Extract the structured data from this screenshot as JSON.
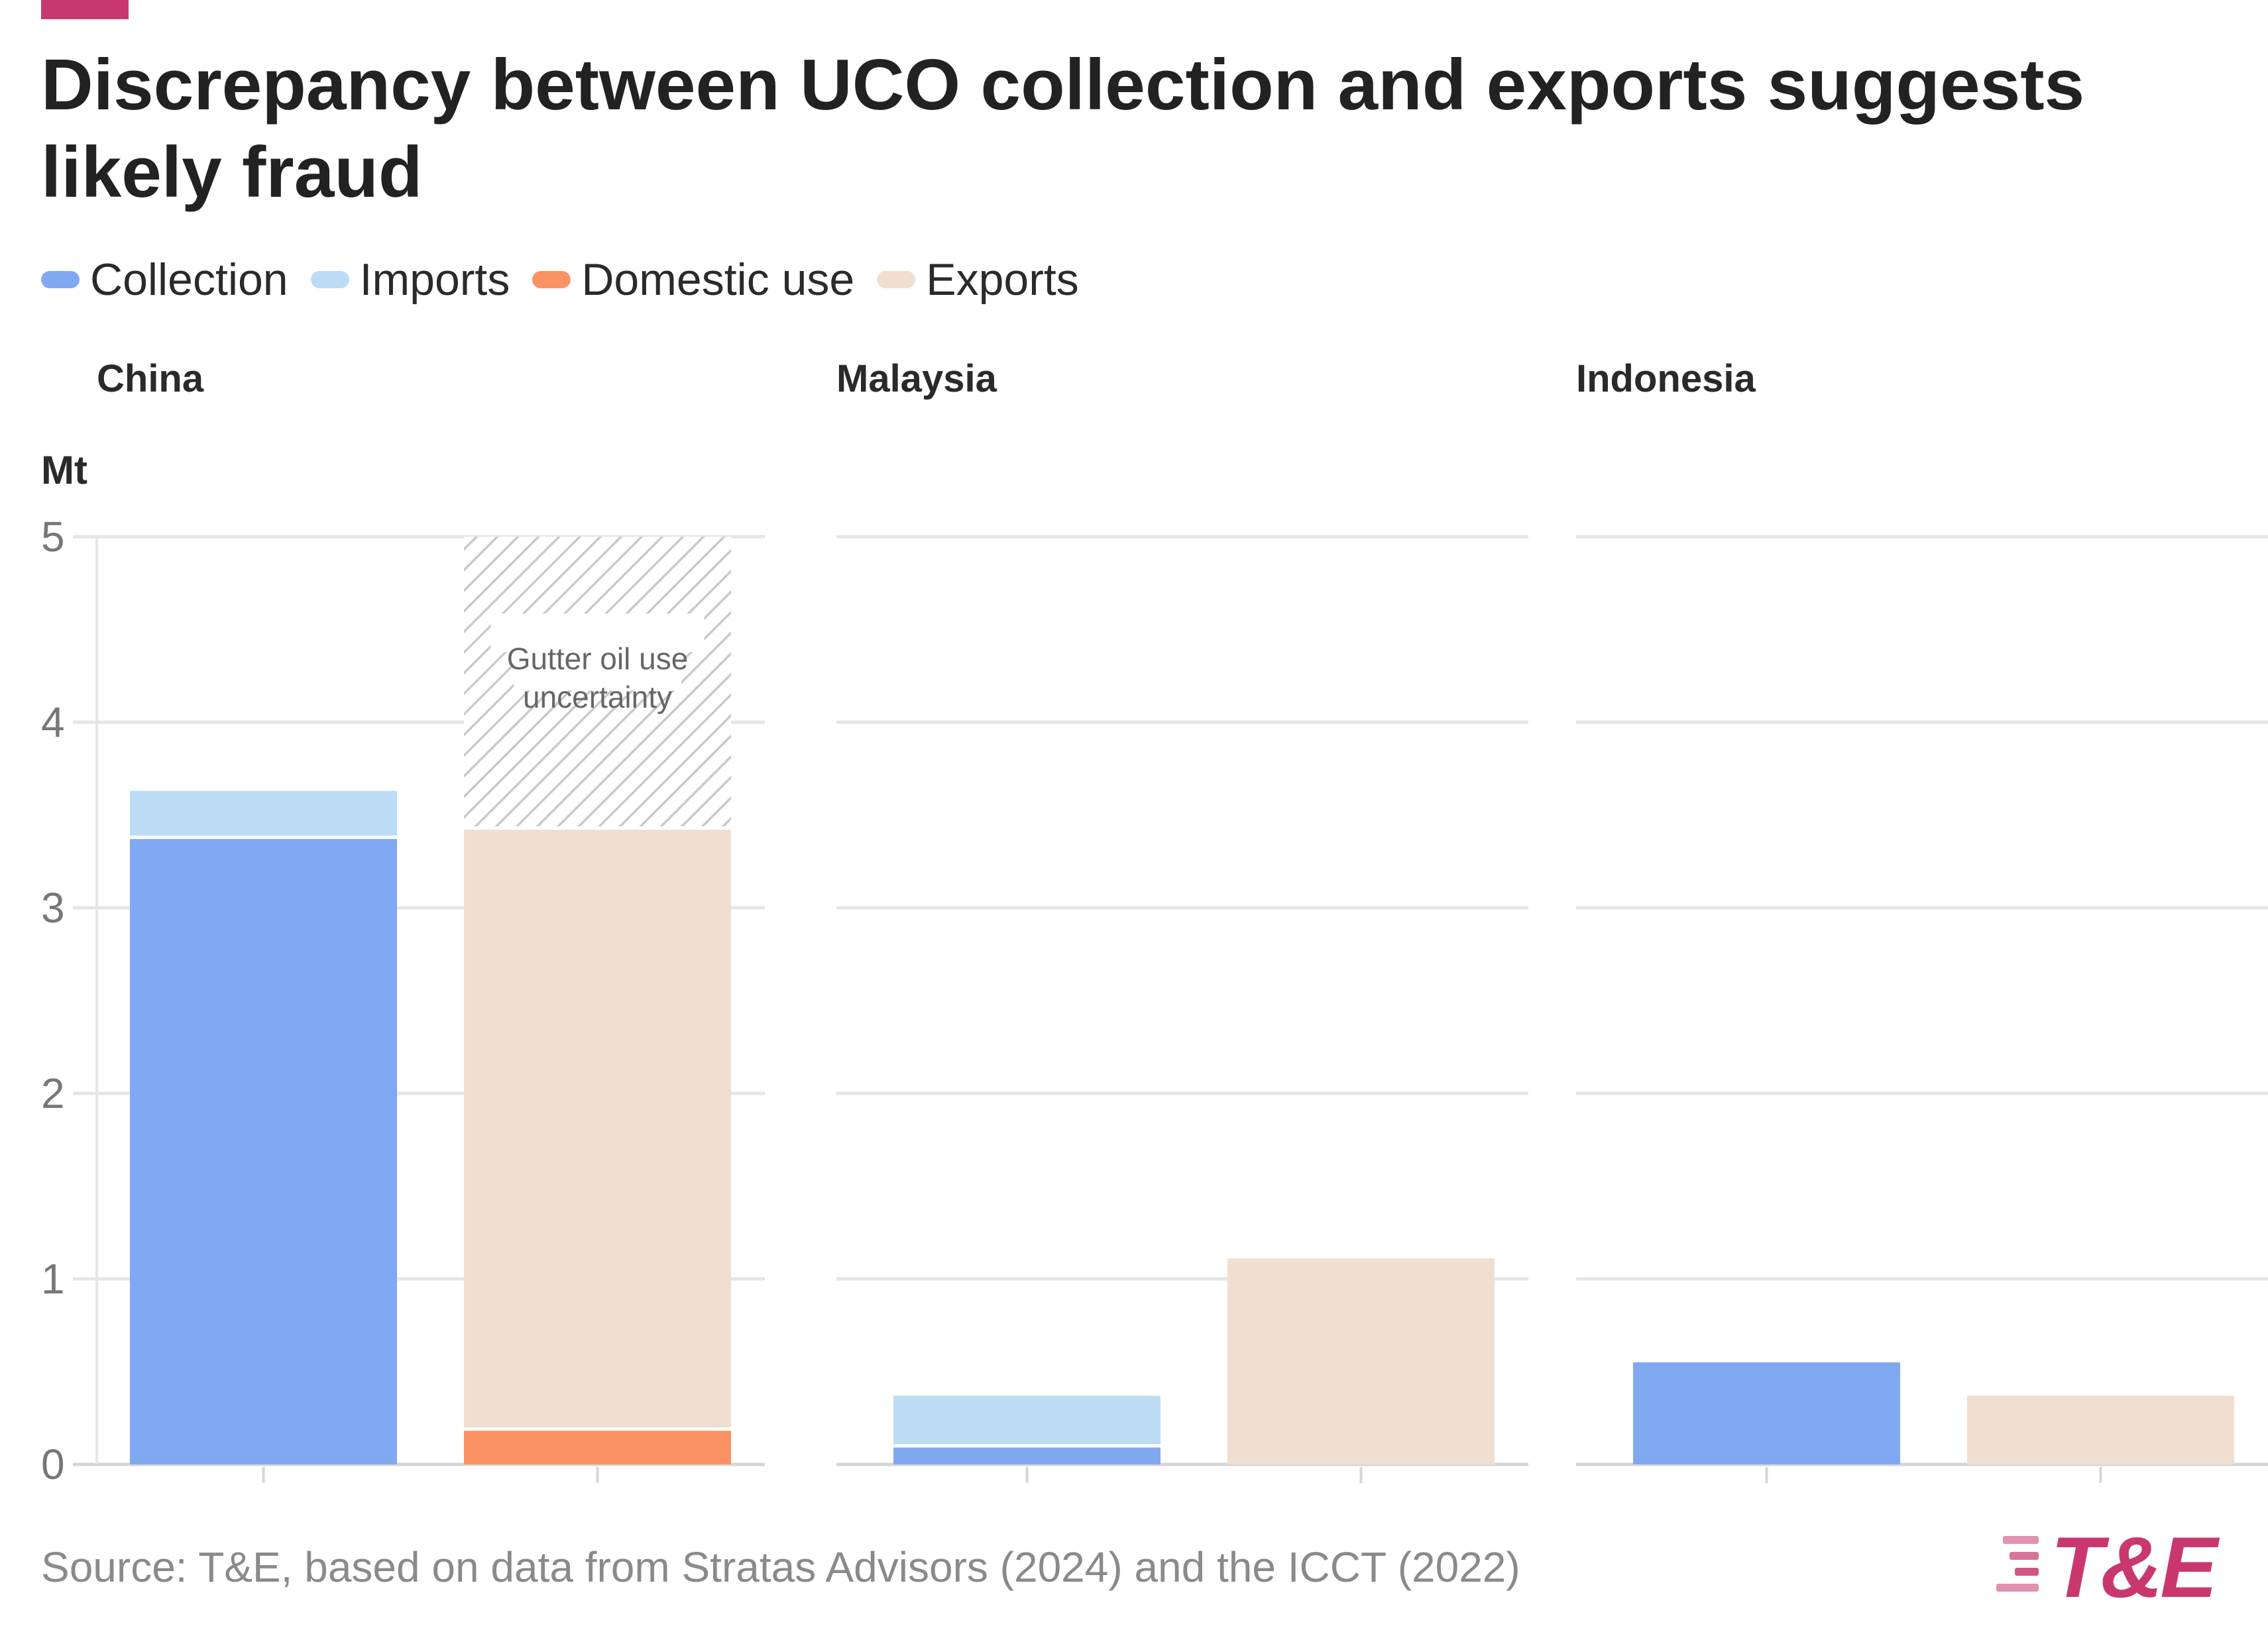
{
  "title": "Discrepancy between UCO collection and exports suggests likely fraud",
  "legend": [
    {
      "label": "Collection",
      "color": "#80a9f2"
    },
    {
      "label": "Imports",
      "color": "#bcdcf5"
    },
    {
      "label": "Domestic use",
      "color": "#fb9263"
    },
    {
      "label": "Exports",
      "color": "#f0dfd1"
    }
  ],
  "source": "Source: T&E, based on data from Stratas Advisors (2024) and the ICCT (2022)",
  "logo_text": "T&E",
  "colors": {
    "collection": "#80a9f2",
    "imports": "#bcdcf5",
    "domestic_use": "#fb9263",
    "exports": "#f0dfd1",
    "accent": "#c8386f",
    "grid": "#e6e6e6",
    "hatch": "#c9c9c9"
  },
  "chart_data": {
    "type": "bar",
    "stacked": true,
    "ylabel": "Mt",
    "ylim": [
      0,
      5
    ],
    "yticks": [
      0,
      1,
      2,
      3,
      4,
      5
    ],
    "series_names": [
      "Collection",
      "Imports",
      "Domestic use",
      "Exports"
    ],
    "panels": [
      {
        "name": "China",
        "bars": [
          {
            "segments": [
              {
                "series": "Collection",
                "value": 3.38
              },
              {
                "series": "Imports",
                "value": 0.25
              }
            ]
          },
          {
            "segments": [
              {
                "series": "Domestic use",
                "value": 0.19
              },
              {
                "series": "Exports",
                "value": 3.24
              }
            ],
            "uncertainty": {
              "from": 3.43,
              "to": 5.0,
              "label_lines": [
                "Gutter oil use",
                "uncertainty"
              ]
            }
          }
        ]
      },
      {
        "name": "Malaysia",
        "bars": [
          {
            "segments": [
              {
                "series": "Collection",
                "value": 0.1
              },
              {
                "series": "Imports",
                "value": 0.27
              }
            ]
          },
          {
            "segments": [
              {
                "series": "Exports",
                "value": 1.11
              }
            ]
          }
        ]
      },
      {
        "name": "Indonesia",
        "bars": [
          {
            "segments": [
              {
                "series": "Collection",
                "value": 0.55
              }
            ]
          },
          {
            "segments": [
              {
                "series": "Exports",
                "value": 0.37
              }
            ]
          }
        ]
      }
    ]
  }
}
